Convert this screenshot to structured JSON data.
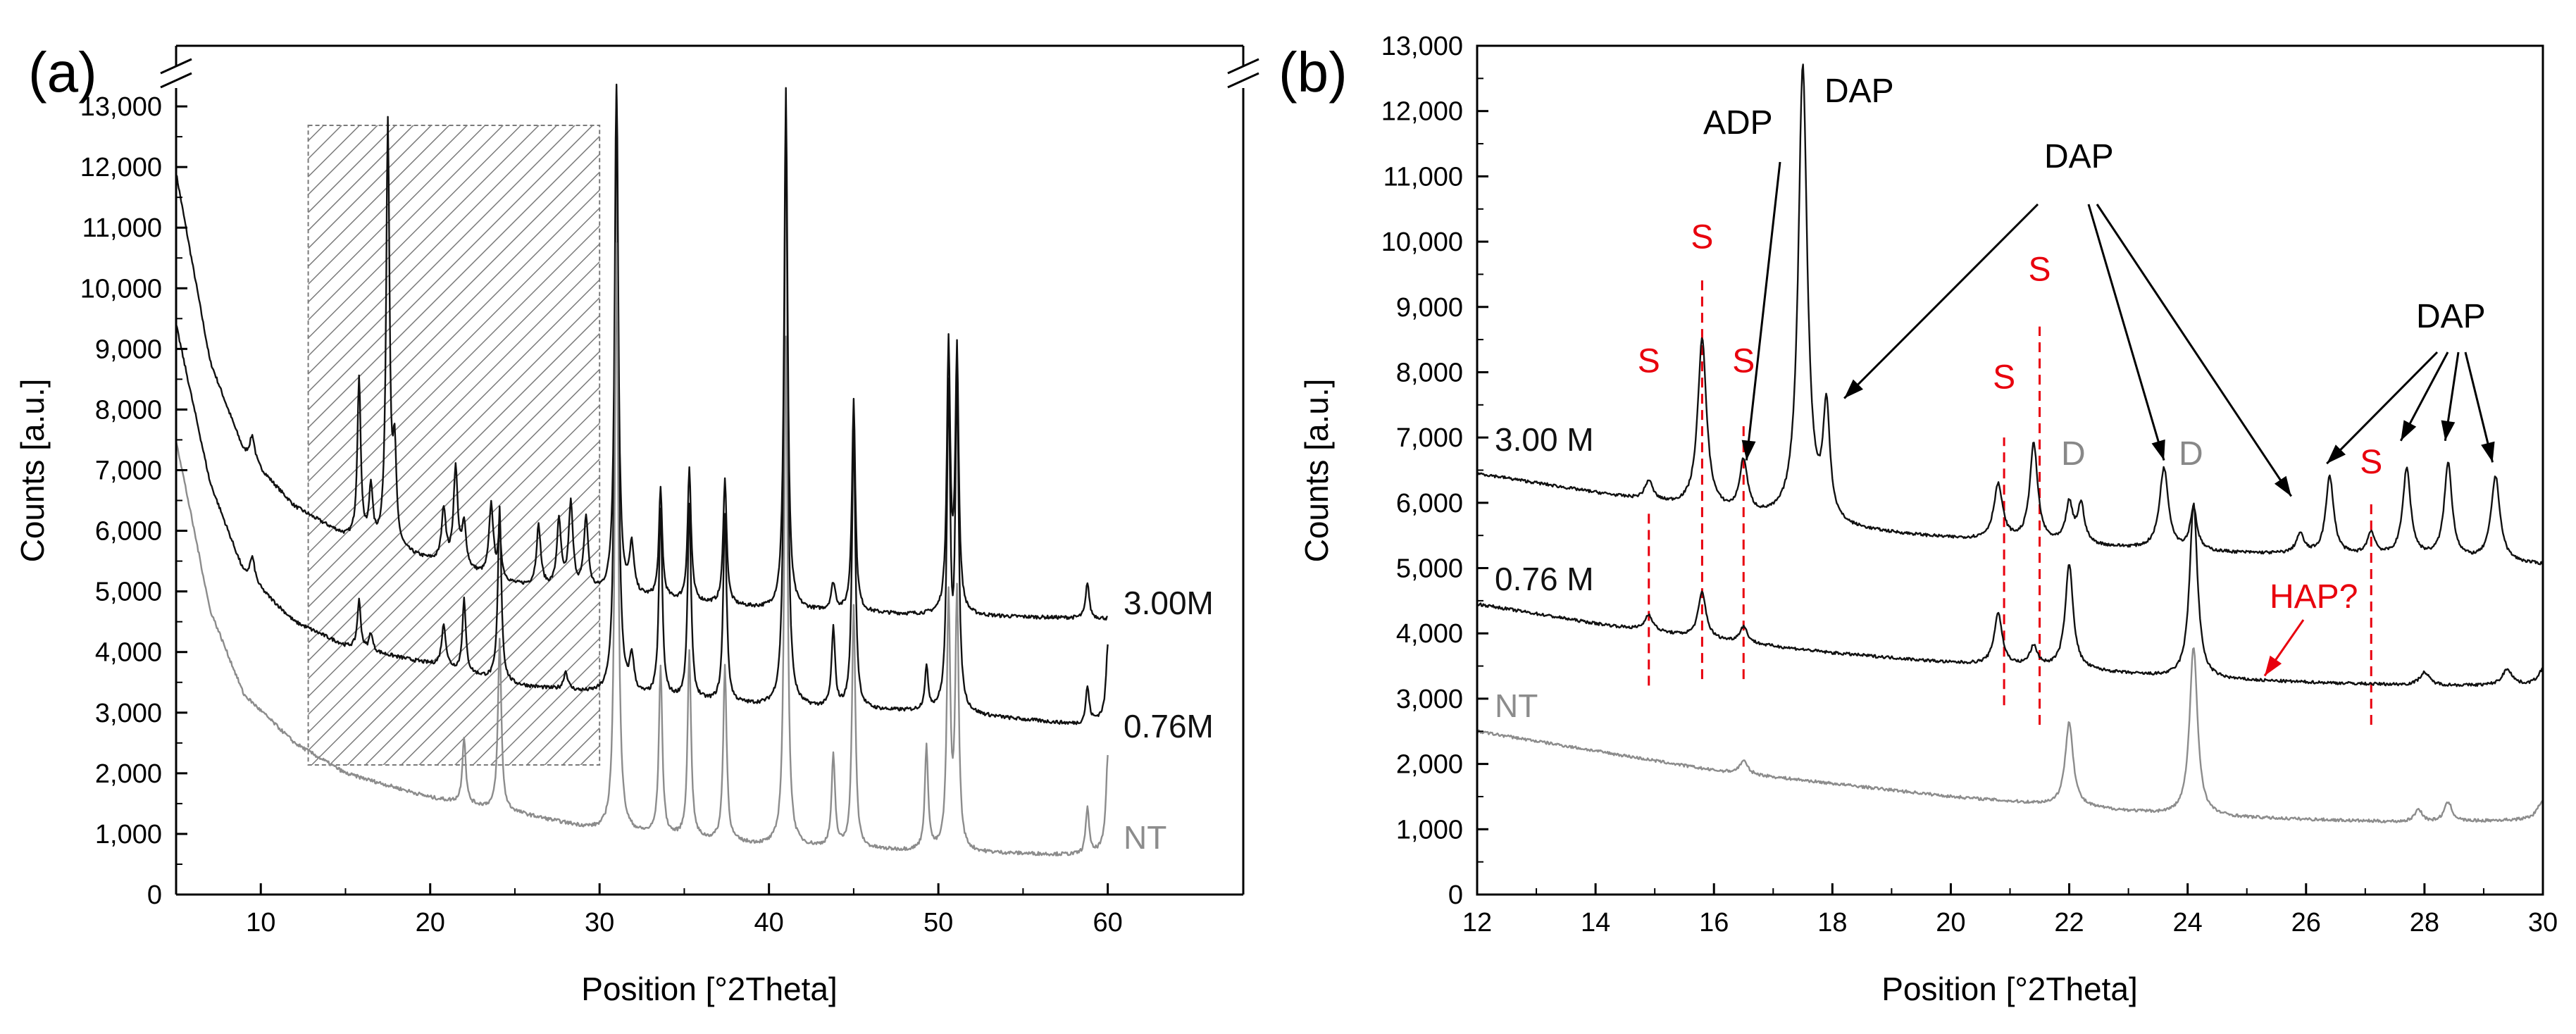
{
  "colors": {
    "black_series": "#111111",
    "nt_series": "#8c8c8c",
    "sulfur_marker": "#e8000d",
    "hatch": "#7a7a7a"
  },
  "chart_data": [
    {
      "panel_label": "(a)",
      "type": "line",
      "xlabel": "Position [°2Theta]",
      "ylabel": "Counts [a.u.]",
      "xlim": [
        5,
        68
      ],
      "ylim": [
        0,
        14000
      ],
      "axis_break": true,
      "x_ticks": [
        10,
        20,
        30,
        40,
        50,
        60
      ],
      "x_tick_labels": [
        "10",
        "20",
        "30",
        "40",
        "50",
        "60"
      ],
      "y_ticks": [
        0,
        1000,
        2000,
        3000,
        4000,
        5000,
        6000,
        7000,
        8000,
        9000,
        10000,
        11000,
        12000,
        13000
      ],
      "y_tick_labels": [
        "0",
        "1,000",
        "2,000",
        "3,000",
        "4,000",
        "5,000",
        "6,000",
        "7,000",
        "8,000",
        "9,000",
        "10,000",
        "11,000",
        "12,000",
        "13,000"
      ],
      "hatched_region": [
        12.8,
        30
      ],
      "series": [
        {
          "name": "3.00M",
          "color": "#111111",
          "baseline": [
            [
              5,
              11900
            ],
            [
              7,
              8800
            ],
            [
              9,
              7300
            ],
            [
              12,
              6400
            ],
            [
              15,
              5900
            ],
            [
              20,
              5500
            ],
            [
              25,
              5100
            ],
            [
              30,
              4950
            ],
            [
              40,
              4700
            ],
            [
              50,
              4600
            ],
            [
              60,
              4550
            ]
          ],
          "peaks": [
            [
              9.5,
              420,
              0.18
            ],
            [
              15.8,
              2650,
              0.12
            ],
            [
              16.5,
              900,
              0.12
            ],
            [
              17.5,
              7000,
              0.12
            ],
            [
              17.9,
              1500,
              0.12
            ],
            [
              20.8,
              900,
              0.15
            ],
            [
              21.5,
              1600,
              0.15
            ],
            [
              22.0,
              700,
              0.15
            ],
            [
              23.6,
              1200,
              0.15
            ],
            [
              24.1,
              700,
              0.12
            ],
            [
              26.4,
              1000,
              0.15
            ],
            [
              27.6,
              1100,
              0.15
            ],
            [
              28.3,
              1400,
              0.15
            ],
            [
              29.2,
              1200,
              0.15
            ],
            [
              31.0,
              8800,
              0.12
            ],
            [
              31.9,
              800,
              0.15
            ],
            [
              33.6,
              1800,
              0.12
            ],
            [
              35.3,
              2200,
              0.12
            ],
            [
              37.4,
              2100,
              0.12
            ],
            [
              41.0,
              8600,
              0.12
            ],
            [
              43.8,
              450,
              0.15
            ],
            [
              45.0,
              3500,
              0.12
            ],
            [
              50.6,
              4400,
              0.12
            ],
            [
              51.1,
              4300,
              0.12
            ],
            [
              58.8,
              600,
              0.12
            ]
          ],
          "x_end": 60,
          "label": "3.00M"
        },
        {
          "name": "0.76M",
          "color": "#111111",
          "baseline": [
            [
              5,
              9400
            ],
            [
              7,
              6800
            ],
            [
              9,
              5300
            ],
            [
              12,
              4500
            ],
            [
              15,
              4100
            ],
            [
              20,
              3800
            ],
            [
              25,
              3450
            ],
            [
              30,
              3300
            ],
            [
              40,
              3100
            ],
            [
              50,
              3000
            ],
            [
              58.5,
              2800
            ],
            [
              60,
              2950
            ]
          ],
          "peaks": [
            [
              9.5,
              400,
              0.18
            ],
            [
              15.8,
              800,
              0.12
            ],
            [
              16.5,
              300,
              0.12
            ],
            [
              20.8,
              700,
              0.15
            ],
            [
              22.0,
              1200,
              0.12
            ],
            [
              24.1,
              2900,
              0.12
            ],
            [
              28.0,
              300,
              0.15
            ],
            [
              31.0,
              10000,
              0.12
            ],
            [
              31.9,
              600,
              0.15
            ],
            [
              33.6,
              3100,
              0.12
            ],
            [
              35.3,
              3200,
              0.12
            ],
            [
              37.4,
              3100,
              0.12
            ],
            [
              41.0,
              9900,
              0.12
            ],
            [
              43.8,
              1300,
              0.12
            ],
            [
              45.0,
              4600,
              0.12
            ],
            [
              49.3,
              700,
              0.12
            ],
            [
              50.6,
              5200,
              0.12
            ],
            [
              51.1,
              5300,
              0.12
            ],
            [
              58.8,
              600,
              0.12
            ],
            [
              60,
              1150,
              0.12
            ]
          ],
          "x_end": 60,
          "label": "0.76M"
        },
        {
          "name": "NT",
          "color": "#8c8c8c",
          "baseline": [
            [
              5,
              7500
            ],
            [
              7,
              4700
            ],
            [
              9,
              3300
            ],
            [
              12,
              2500
            ],
            [
              15,
              2000
            ],
            [
              20,
              1600
            ],
            [
              25,
              1350
            ],
            [
              30,
              1050
            ],
            [
              40,
              800
            ],
            [
              50,
              700
            ],
            [
              59,
              650
            ],
            [
              60,
              800
            ]
          ],
          "peaks": [
            [
              22.0,
              1100,
              0.12
            ],
            [
              24.1,
              2800,
              0.12
            ],
            [
              31.0,
              9700,
              0.12
            ],
            [
              33.6,
              2800,
              0.12
            ],
            [
              35.3,
              3100,
              0.12
            ],
            [
              37.4,
              2900,
              0.12
            ],
            [
              41.0,
              8400,
              0.12
            ],
            [
              43.8,
              1500,
              0.12
            ],
            [
              45.0,
              4000,
              0.12
            ],
            [
              49.3,
              1700,
              0.12
            ],
            [
              50.6,
              4100,
              0.12
            ],
            [
              51.1,
              4200,
              0.12
            ],
            [
              58.8,
              800,
              0.12
            ],
            [
              60,
              1500,
              0.12
            ]
          ],
          "x_end": 60,
          "label": "NT"
        }
      ]
    },
    {
      "panel_label": "(b)",
      "type": "line",
      "xlabel": "Position [°2Theta]",
      "ylabel": "Counts [a.u.]",
      "xlim": [
        12,
        30
      ],
      "ylim": [
        0,
        13000
      ],
      "x_ticks": [
        12,
        14,
        16,
        18,
        20,
        22,
        24,
        26,
        28,
        30
      ],
      "x_tick_labels": [
        "12",
        "14",
        "16",
        "18",
        "20",
        "22",
        "24",
        "26",
        "28",
        "30"
      ],
      "y_ticks": [
        0,
        1000,
        2000,
        3000,
        4000,
        5000,
        6000,
        7000,
        8000,
        9000,
        10000,
        11000,
        12000,
        13000
      ],
      "y_tick_labels": [
        "0",
        "1,000",
        "2,000",
        "3,000",
        "4,000",
        "5,000",
        "6,000",
        "7,000",
        "8,000",
        "9,000",
        "10,000",
        "11,000",
        "12,000",
        "13,000"
      ],
      "series": [
        {
          "name": "3.00 M",
          "color": "#111111",
          "baseline": [
            [
              12,
              6450
            ],
            [
              14,
              6150
            ],
            [
              16,
              5850
            ],
            [
              18,
              5600
            ],
            [
              20,
              5450
            ],
            [
              22,
              5350
            ],
            [
              24,
              5250
            ],
            [
              26,
              5200
            ],
            [
              28,
              5150
            ],
            [
              30,
              5050
            ]
          ],
          "peaks": [
            [
              14.9,
              300,
              0.08
            ],
            [
              15.8,
              2600,
              0.09
            ],
            [
              16.5,
              800,
              0.08
            ],
            [
              17.5,
              7000,
              0.09
            ],
            [
              17.9,
              1700,
              0.07
            ],
            [
              20.8,
              850,
              0.09
            ],
            [
              21.4,
              1500,
              0.08
            ],
            [
              22.0,
              600,
              0.07
            ],
            [
              22.2,
              600,
              0.07
            ],
            [
              23.6,
              1250,
              0.09
            ],
            [
              24.1,
              650,
              0.07
            ],
            [
              25.9,
              300,
              0.08
            ],
            [
              26.4,
              1200,
              0.08
            ],
            [
              27.1,
              350,
              0.08
            ],
            [
              27.7,
              1350,
              0.08
            ],
            [
              28.4,
              1450,
              0.08
            ],
            [
              29.2,
              1300,
              0.09
            ]
          ],
          "label": "3.00 M"
        },
        {
          "name": "0.76 M",
          "color": "#111111",
          "baseline": [
            [
              12,
              4450
            ],
            [
              14,
              4150
            ],
            [
              16,
              3900
            ],
            [
              18,
              3700
            ],
            [
              20,
              3550
            ],
            [
              22,
              3450
            ],
            [
              24,
              3300
            ],
            [
              26,
              3250
            ],
            [
              28,
              3200
            ],
            [
              30,
              3200
            ]
          ],
          "peaks": [
            [
              14.9,
              250,
              0.08
            ],
            [
              15.8,
              700,
              0.08
            ],
            [
              16.5,
              250,
              0.08
            ],
            [
              20.8,
              800,
              0.08
            ],
            [
              21.4,
              300,
              0.08
            ],
            [
              22.0,
              1600,
              0.08
            ],
            [
              24.1,
              2700,
              0.08
            ],
            [
              28.0,
              200,
              0.1
            ],
            [
              29.4,
              250,
              0.1
            ],
            [
              30.0,
              250,
              0.1
            ]
          ],
          "label": "0.76 M"
        },
        {
          "name": "NT",
          "color": "#8c8c8c",
          "baseline": [
            [
              12,
              2500
            ],
            [
              14,
              2200
            ],
            [
              16,
              1900
            ],
            [
              18,
              1700
            ],
            [
              20,
              1500
            ],
            [
              22,
              1350
            ],
            [
              24,
              1200
            ],
            [
              26,
              1150
            ],
            [
              28,
              1100
            ],
            [
              30,
              1150
            ]
          ],
          "peaks": [
            [
              16.5,
              200,
              0.08
            ],
            [
              22.0,
              1300,
              0.08
            ],
            [
              24.1,
              2600,
              0.08
            ],
            [
              27.9,
              200,
              0.08
            ],
            [
              28.4,
              300,
              0.08
            ],
            [
              30.0,
              300,
              0.1
            ]
          ],
          "label": "NT"
        }
      ],
      "sulfur_markers": [
        {
          "x": 14.9,
          "y_from": 3200,
          "y_to": 5900,
          "label": "S",
          "label_y": 8000
        },
        {
          "x": 15.8,
          "y_from": 3300,
          "y_to": 9500,
          "label": "S",
          "label_y": 9900
        },
        {
          "x": 16.5,
          "y_from": 3300,
          "y_to": 7200,
          "label": "S",
          "label_y": 8000
        },
        {
          "x": 20.9,
          "y_from": 2900,
          "y_to": 7000,
          "label": "S",
          "label_y": 7750
        },
        {
          "x": 21.5,
          "y_from": 2600,
          "y_to": 8700,
          "label": "S",
          "label_y": 9400
        },
        {
          "x": 27.1,
          "y_from": 2600,
          "y_to": 6000,
          "label": "S",
          "label_y": 6450
        }
      ],
      "annotations": {
        "adp_label": "ADP",
        "dap_top_label": "DAP",
        "dap_mid_label": "DAP",
        "dap_right_label": "DAP",
        "d_label_1": "D",
        "d_label_2": "D",
        "hap_label": "HAP?"
      }
    }
  ]
}
